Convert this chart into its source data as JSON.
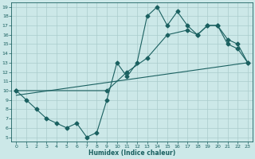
{
  "title": "",
  "xlabel": "Humidex (Indice chaleur)",
  "bg_color": "#cce8e8",
  "grid_color": "#aacccc",
  "line_color": "#1a6060",
  "xlim": [
    -0.5,
    23.5
  ],
  "ylim": [
    4.5,
    19.5
  ],
  "xticks": [
    0,
    1,
    2,
    3,
    4,
    5,
    6,
    7,
    8,
    9,
    10,
    11,
    12,
    13,
    14,
    15,
    16,
    17,
    18,
    19,
    20,
    21,
    22,
    23
  ],
  "yticks": [
    5,
    6,
    7,
    8,
    9,
    10,
    11,
    12,
    13,
    14,
    15,
    16,
    17,
    18,
    19
  ],
  "line1_x": [
    0,
    1,
    2,
    3,
    4,
    5,
    6,
    7,
    8,
    9,
    10,
    11,
    12,
    13,
    14,
    15,
    16,
    17,
    18,
    19,
    20,
    21,
    22,
    23
  ],
  "line1_y": [
    10,
    9,
    8,
    7,
    6.5,
    6,
    6.5,
    5,
    5.5,
    9,
    13,
    11.5,
    13,
    18,
    19,
    17,
    18.5,
    17,
    16,
    17,
    17,
    15,
    14.5,
    13
  ],
  "line2_x": [
    0,
    23
  ],
  "line2_y": [
    9.5,
    13
  ],
  "line3_x": [
    0,
    9,
    11,
    13,
    15,
    17,
    18,
    19,
    20,
    21,
    22,
    23
  ],
  "line3_y": [
    10,
    10,
    12,
    13.5,
    16,
    16.5,
    16,
    17,
    17,
    15.5,
    15,
    13
  ]
}
